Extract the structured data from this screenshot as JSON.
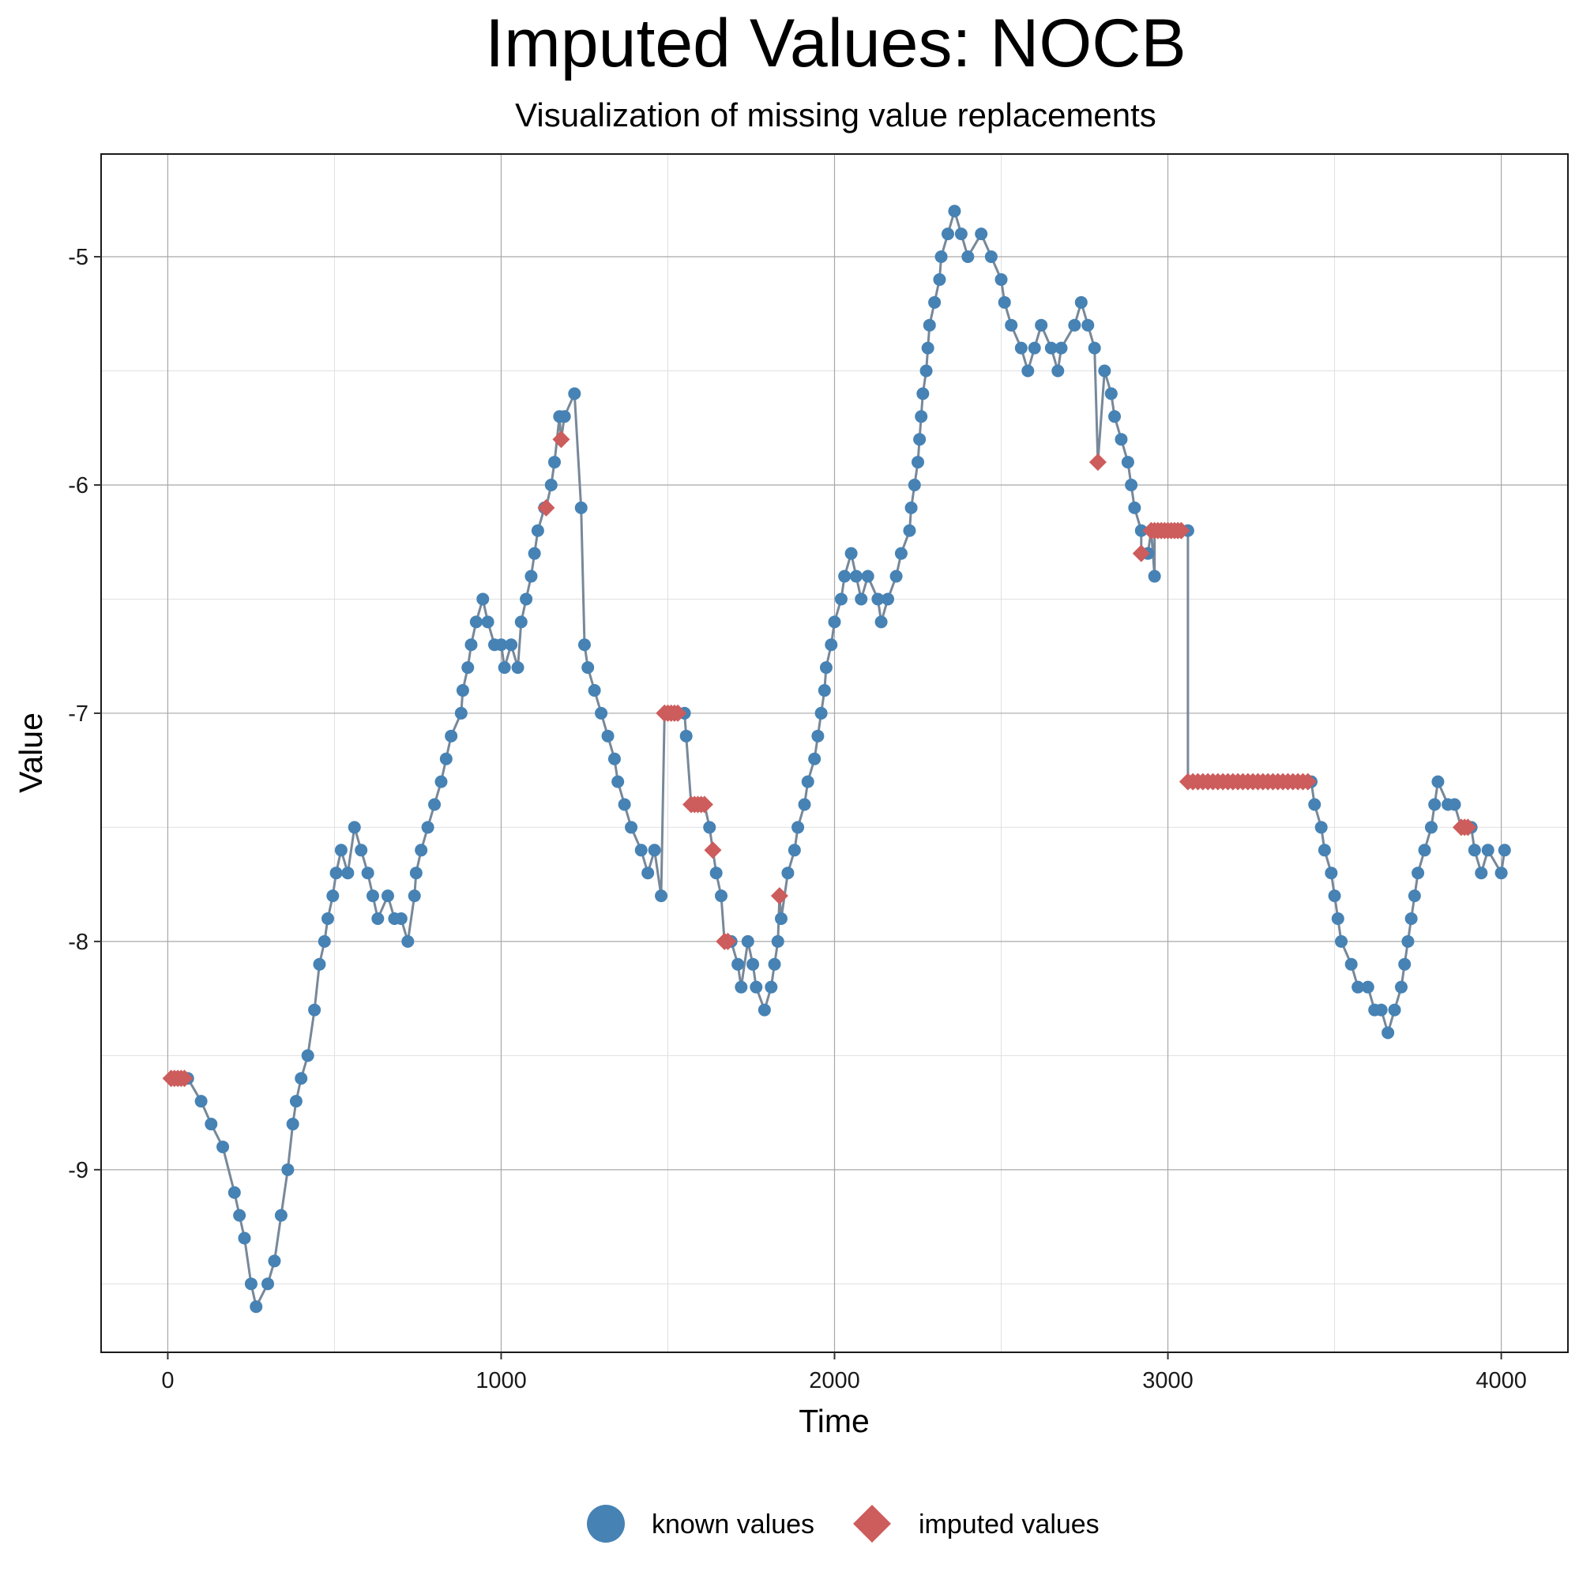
{
  "chart_data": {
    "type": "line",
    "title": "Imputed Values: NOCB",
    "subtitle": "Visualization of missing value replacements",
    "xlabel": "Time",
    "ylabel": "Value",
    "xlim": [
      -200,
      4200
    ],
    "ylim": [
      -9.8,
      -4.55
    ],
    "x_ticks": [
      0,
      1000,
      2000,
      3000,
      4000
    ],
    "x_tick_labels": [
      "0",
      "1000",
      "2000",
      "3000",
      "4000"
    ],
    "y_ticks": [
      -9,
      -8,
      -7,
      -6,
      -5
    ],
    "y_tick_labels": [
      "-9",
      "-8",
      "-7",
      "-6",
      "-5"
    ],
    "grid": true,
    "legend_position": "bottom",
    "colors": {
      "known": "#4682B4",
      "imputed": "#CD5C5C",
      "line": "#778899"
    },
    "series": [
      {
        "name": "known values",
        "marker": "circle",
        "key": [
          [
            60,
            -8.6
          ],
          [
            100,
            -8.7
          ],
          [
            130,
            -8.8
          ],
          [
            165,
            -8.9
          ],
          [
            200,
            -9.1
          ],
          [
            215,
            -9.2
          ],
          [
            230,
            -9.3
          ],
          [
            250,
            -9.5
          ],
          [
            265,
            -9.6
          ],
          [
            300,
            -9.5
          ],
          [
            320,
            -9.4
          ],
          [
            340,
            -9.2
          ],
          [
            360,
            -9.0
          ],
          [
            375,
            -8.8
          ],
          [
            385,
            -8.7
          ],
          [
            400,
            -8.6
          ],
          [
            420,
            -8.5
          ],
          [
            440,
            -8.3
          ],
          [
            455,
            -8.1
          ],
          [
            470,
            -8.0
          ],
          [
            480,
            -7.9
          ],
          [
            495,
            -7.8
          ],
          [
            505,
            -7.7
          ],
          [
            520,
            -7.6
          ],
          [
            540,
            -7.7
          ],
          [
            560,
            -7.5
          ],
          [
            580,
            -7.6
          ],
          [
            600,
            -7.7
          ],
          [
            615,
            -7.8
          ],
          [
            630,
            -7.9
          ],
          [
            660,
            -7.8
          ],
          [
            680,
            -7.9
          ],
          [
            700,
            -7.9
          ],
          [
            720,
            -8.0
          ],
          [
            740,
            -7.8
          ],
          [
            745,
            -7.7
          ],
          [
            760,
            -7.6
          ],
          [
            780,
            -7.5
          ],
          [
            800,
            -7.4
          ],
          [
            820,
            -7.3
          ],
          [
            835,
            -7.2
          ],
          [
            850,
            -7.1
          ],
          [
            880,
            -7.0
          ],
          [
            885,
            -6.9
          ],
          [
            900,
            -6.8
          ],
          [
            910,
            -6.7
          ],
          [
            925,
            -6.6
          ],
          [
            945,
            -6.5
          ],
          [
            960,
            -6.6
          ],
          [
            980,
            -6.7
          ],
          [
            1000,
            -6.7
          ],
          [
            1010,
            -6.8
          ],
          [
            1030,
            -6.7
          ],
          [
            1050,
            -6.8
          ],
          [
            1060,
            -6.6
          ],
          [
            1075,
            -6.5
          ],
          [
            1090,
            -6.4
          ],
          [
            1100,
            -6.3
          ],
          [
            1110,
            -6.2
          ],
          [
            1130,
            -6.1
          ],
          [
            1150,
            -6.0
          ],
          [
            1160,
            -5.9
          ],
          [
            1175,
            -5.7
          ],
          [
            1190,
            -5.7
          ],
          [
            1220,
            -5.6
          ],
          [
            1240,
            -6.1
          ],
          [
            1250,
            -6.7
          ],
          [
            1260,
            -6.8
          ],
          [
            1280,
            -6.9
          ],
          [
            1300,
            -7.0
          ],
          [
            1320,
            -7.1
          ],
          [
            1340,
            -7.2
          ],
          [
            1350,
            -7.3
          ],
          [
            1370,
            -7.4
          ],
          [
            1390,
            -7.5
          ],
          [
            1420,
            -7.6
          ],
          [
            1440,
            -7.7
          ],
          [
            1460,
            -7.6
          ],
          [
            1480,
            -7.8
          ],
          [
            1550,
            -7.0
          ],
          [
            1555,
            -7.1
          ],
          [
            1625,
            -7.5
          ],
          [
            1645,
            -7.7
          ],
          [
            1660,
            -7.8
          ],
          [
            1690,
            -8.0
          ],
          [
            1710,
            -8.1
          ],
          [
            1720,
            -8.2
          ],
          [
            1740,
            -8.0
          ],
          [
            1755,
            -8.1
          ],
          [
            1765,
            -8.2
          ],
          [
            1790,
            -8.3
          ],
          [
            1810,
            -8.2
          ],
          [
            1820,
            -8.1
          ],
          [
            1830,
            -8.0
          ],
          [
            1840,
            -7.9
          ],
          [
            1860,
            -7.7
          ],
          [
            1880,
            -7.6
          ],
          [
            1890,
            -7.5
          ],
          [
            1910,
            -7.4
          ],
          [
            1920,
            -7.3
          ],
          [
            1940,
            -7.2
          ],
          [
            1950,
            -7.1
          ],
          [
            1960,
            -7.0
          ],
          [
            1970,
            -6.9
          ],
          [
            1975,
            -6.8
          ],
          [
            1990,
            -6.7
          ],
          [
            2000,
            -6.6
          ],
          [
            2020,
            -6.5
          ],
          [
            2030,
            -6.4
          ],
          [
            2050,
            -6.3
          ],
          [
            2065,
            -6.4
          ],
          [
            2080,
            -6.5
          ],
          [
            2100,
            -6.4
          ],
          [
            2130,
            -6.5
          ],
          [
            2140,
            -6.6
          ],
          [
            2160,
            -6.5
          ],
          [
            2185,
            -6.4
          ],
          [
            2200,
            -6.3
          ],
          [
            2225,
            -6.2
          ],
          [
            2230,
            -6.1
          ],
          [
            2240,
            -6.0
          ],
          [
            2250,
            -5.9
          ],
          [
            2255,
            -5.8
          ],
          [
            2260,
            -5.7
          ],
          [
            2265,
            -5.6
          ],
          [
            2275,
            -5.5
          ],
          [
            2280,
            -5.4
          ],
          [
            2285,
            -5.3
          ],
          [
            2300,
            -5.2
          ],
          [
            2315,
            -5.1
          ],
          [
            2320,
            -5.0
          ],
          [
            2340,
            -4.9
          ],
          [
            2360,
            -4.8
          ],
          [
            2380,
            -4.9
          ],
          [
            2400,
            -5.0
          ],
          [
            2440,
            -4.9
          ],
          [
            2470,
            -5.0
          ],
          [
            2500,
            -5.1
          ],
          [
            2510,
            -5.2
          ],
          [
            2530,
            -5.3
          ],
          [
            2560,
            -5.4
          ],
          [
            2580,
            -5.5
          ],
          [
            2600,
            -5.4
          ],
          [
            2620,
            -5.3
          ],
          [
            2650,
            -5.4
          ],
          [
            2670,
            -5.5
          ],
          [
            2680,
            -5.4
          ],
          [
            2720,
            -5.3
          ],
          [
            2740,
            -5.2
          ],
          [
            2760,
            -5.3
          ],
          [
            2780,
            -5.4
          ],
          [
            2810,
            -5.5
          ],
          [
            2830,
            -5.6
          ],
          [
            2840,
            -5.7
          ],
          [
            2860,
            -5.8
          ],
          [
            2880,
            -5.9
          ],
          [
            2890,
            -6.0
          ],
          [
            2900,
            -6.1
          ],
          [
            2920,
            -6.2
          ],
          [
            2940,
            -6.3
          ],
          [
            2960,
            -6.4
          ],
          [
            3060,
            -6.2
          ],
          [
            3430,
            -7.3
          ],
          [
            3440,
            -7.4
          ],
          [
            3460,
            -7.5
          ],
          [
            3470,
            -7.6
          ],
          [
            3490,
            -7.7
          ],
          [
            3500,
            -7.8
          ],
          [
            3510,
            -7.9
          ],
          [
            3520,
            -8.0
          ],
          [
            3550,
            -8.1
          ],
          [
            3570,
            -8.2
          ],
          [
            3600,
            -8.2
          ],
          [
            3620,
            -8.3
          ],
          [
            3640,
            -8.3
          ],
          [
            3660,
            -8.4
          ],
          [
            3680,
            -8.3
          ],
          [
            3700,
            -8.2
          ],
          [
            3710,
            -8.1
          ],
          [
            3720,
            -8.0
          ],
          [
            3730,
            -7.9
          ],
          [
            3740,
            -7.8
          ],
          [
            3750,
            -7.7
          ],
          [
            3770,
            -7.6
          ],
          [
            3790,
            -7.5
          ],
          [
            3800,
            -7.4
          ],
          [
            3810,
            -7.3
          ],
          [
            3840,
            -7.4
          ],
          [
            3860,
            -7.4
          ],
          [
            3910,
            -7.5
          ],
          [
            3920,
            -7.6
          ],
          [
            3940,
            -7.7
          ],
          [
            3960,
            -7.6
          ],
          [
            4000,
            -7.7
          ],
          [
            4010,
            -7.6
          ]
        ]
      },
      {
        "name": "imputed values",
        "marker": "diamond",
        "imputed": [
          [
            10,
            -8.6
          ],
          [
            20,
            -8.6
          ],
          [
            30,
            -8.6
          ],
          [
            40,
            -8.6
          ],
          [
            50,
            -8.6
          ],
          [
            1135,
            -6.1
          ],
          [
            1180,
            -5.8
          ],
          [
            1490,
            -7.0
          ],
          [
            1500,
            -7.0
          ],
          [
            1510,
            -7.0
          ],
          [
            1520,
            -7.0
          ],
          [
            1530,
            -7.0
          ],
          [
            1570,
            -7.4
          ],
          [
            1580,
            -7.4
          ],
          [
            1590,
            -7.4
          ],
          [
            1600,
            -7.4
          ],
          [
            1610,
            -7.4
          ],
          [
            1635,
            -7.6
          ],
          [
            1670,
            -8.0
          ],
          [
            1680,
            -8.0
          ],
          [
            1835,
            -7.8
          ],
          [
            2790,
            -5.9
          ],
          [
            2920,
            -6.3
          ],
          [
            2950,
            -6.2
          ],
          [
            2960,
            -6.2
          ],
          [
            2970,
            -6.2
          ],
          [
            2980,
            -6.2
          ],
          [
            2990,
            -6.2
          ],
          [
            3000,
            -6.2
          ],
          [
            3010,
            -6.2
          ],
          [
            3020,
            -6.2
          ],
          [
            3030,
            -6.2
          ],
          [
            3040,
            -6.2
          ],
          [
            3060,
            -7.3
          ],
          [
            3075,
            -7.3
          ],
          [
            3090,
            -7.3
          ],
          [
            3105,
            -7.3
          ],
          [
            3120,
            -7.3
          ],
          [
            3135,
            -7.3
          ],
          [
            3150,
            -7.3
          ],
          [
            3165,
            -7.3
          ],
          [
            3180,
            -7.3
          ],
          [
            3195,
            -7.3
          ],
          [
            3210,
            -7.3
          ],
          [
            3225,
            -7.3
          ],
          [
            3240,
            -7.3
          ],
          [
            3255,
            -7.3
          ],
          [
            3270,
            -7.3
          ],
          [
            3285,
            -7.3
          ],
          [
            3300,
            -7.3
          ],
          [
            3315,
            -7.3
          ],
          [
            3330,
            -7.3
          ],
          [
            3345,
            -7.3
          ],
          [
            3360,
            -7.3
          ],
          [
            3375,
            -7.3
          ],
          [
            3390,
            -7.3
          ],
          [
            3405,
            -7.3
          ],
          [
            3420,
            -7.3
          ],
          [
            3880,
            -7.5
          ],
          [
            3890,
            -7.5
          ],
          [
            3900,
            -7.5
          ]
        ]
      }
    ]
  }
}
